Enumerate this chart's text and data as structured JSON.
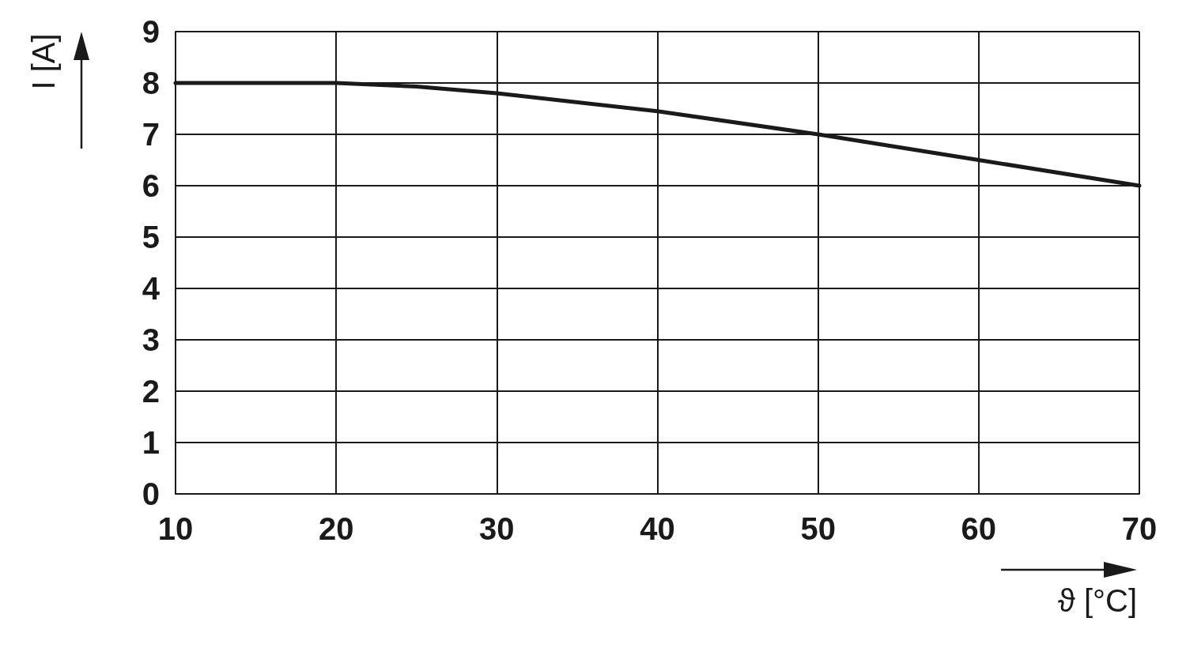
{
  "chart_data": {
    "type": "line",
    "xlabel": "ϑ [°C]",
    "ylabel": "I [A]",
    "x": [
      10,
      20,
      25,
      30,
      40,
      50,
      60,
      70
    ],
    "series": [
      {
        "color": "#1a1a1a",
        "values": [
          8,
          8,
          7.93,
          7.8,
          7.45,
          7.0,
          6.5,
          6.0
        ]
      }
    ],
    "xlim": [
      10,
      70
    ],
    "xticks": [
      10,
      20,
      30,
      40,
      50,
      60,
      70
    ],
    "ylim": [
      0,
      9
    ],
    "yticks": [
      0,
      1,
      2,
      3,
      4,
      5,
      6,
      7,
      8,
      9
    ],
    "grid": true,
    "marker": "none",
    "line_style": "solid"
  }
}
